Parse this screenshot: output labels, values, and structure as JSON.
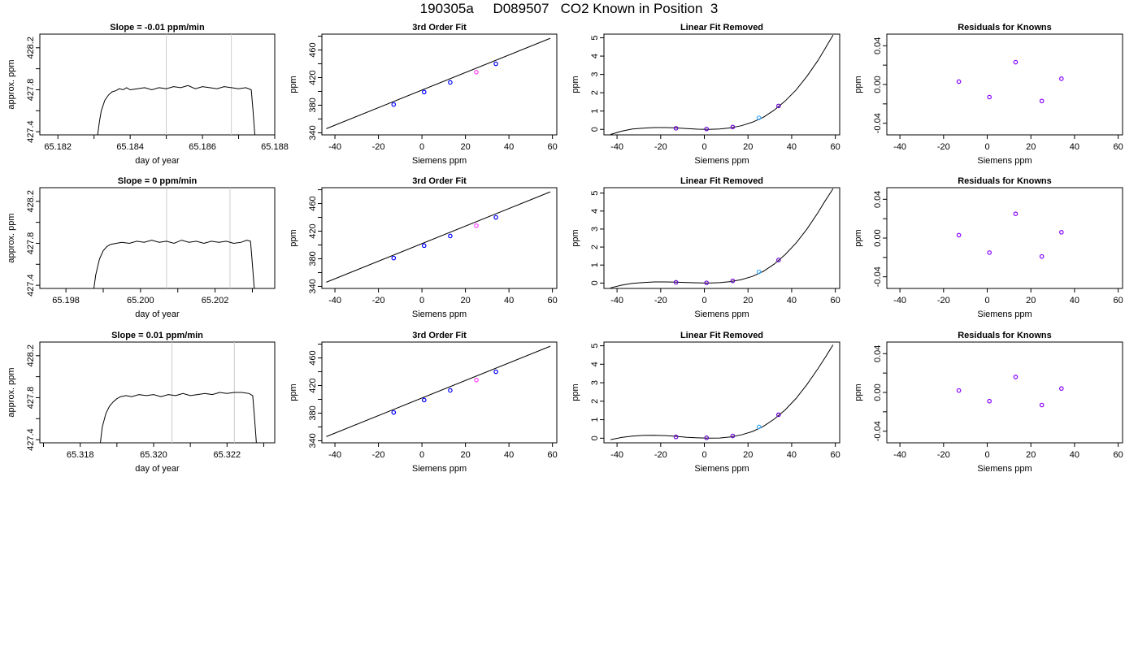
{
  "page": {
    "title": "190305a     D089507   CO2 Known in Position  3"
  },
  "chart_data": [
    {
      "type": "line",
      "title": "Slope =  -0.01  ppm/min",
      "xlabel": "day of year",
      "ylabel": "approx. ppm",
      "xlim": [
        65.1815,
        65.188
      ],
      "ylim": [
        427.37,
        428.33
      ],
      "xticks": [
        "65.182",
        "65.184",
        "65.186",
        "65.188"
      ],
      "xtick_values": [
        65.182,
        65.184,
        65.186,
        65.188
      ],
      "yticks": [
        "427.4",
        "427.8",
        "428.2"
      ],
      "ytick_values": [
        427.4,
        427.8,
        428.2
      ],
      "ytick_minor": [
        427.6,
        428.0
      ],
      "xtick_minor": [
        65.183,
        65.185,
        65.187
      ],
      "vlines": [
        65.185,
        65.1868
      ],
      "series": [
        {
          "x": [
            65.1831,
            65.18315,
            65.1832,
            65.1833,
            65.1834,
            65.1835,
            65.1836,
            65.1837,
            65.1838,
            65.1839,
            65.184,
            65.1842,
            65.1844,
            65.1846,
            65.1848,
            65.185,
            65.1852,
            65.1854,
            65.1856,
            65.1858,
            65.186,
            65.1862,
            65.1864,
            65.1866,
            65.1868,
            65.187,
            65.1872,
            65.18735,
            65.1874,
            65.18745
          ],
          "y": [
            427.37,
            427.5,
            427.6,
            427.7,
            427.75,
            427.78,
            427.79,
            427.81,
            427.8,
            427.82,
            427.8,
            427.81,
            427.82,
            427.8,
            427.82,
            427.81,
            427.83,
            427.82,
            427.84,
            427.81,
            427.83,
            427.82,
            427.81,
            427.83,
            427.82,
            427.81,
            427.82,
            427.8,
            427.6,
            427.37
          ]
        }
      ]
    },
    {
      "type": "scatter",
      "title": "3rd Order Fit",
      "xlabel": "Siemens ppm",
      "ylabel": "ppm",
      "xlim": [
        -46,
        62
      ],
      "ylim": [
        337,
        483
      ],
      "xticks": [
        "-40",
        "-20",
        "0",
        "20",
        "40",
        "60"
      ],
      "xtick_values": [
        -40,
        -20,
        0,
        20,
        40,
        60
      ],
      "yticks": [
        "340",
        "380",
        "420",
        "460"
      ],
      "ytick_values": [
        340,
        380,
        420,
        460
      ],
      "ytick_minor": [
        360,
        400,
        440,
        480
      ],
      "fit_line": {
        "x": [
          -44,
          59
        ],
        "y": [
          346,
          477
        ]
      },
      "points": [
        {
          "x": -13,
          "y": 381,
          "color": "#0000ff"
        },
        {
          "x": 1,
          "y": 399,
          "color": "#0000ff"
        },
        {
          "x": 13,
          "y": 413,
          "color": "#0000ff"
        },
        {
          "x": 25,
          "y": 428,
          "color": "#ff44ff"
        },
        {
          "x": 34,
          "y": 440,
          "color": "#0000ff"
        }
      ]
    },
    {
      "type": "scatter",
      "title": "Linear Fit Removed",
      "xlabel": "Siemens ppm",
      "ylabel": "ppm",
      "xlim": [
        -46,
        62
      ],
      "ylim": [
        -0.3,
        5.2
      ],
      "xticks": [
        "-40",
        "-20",
        "0",
        "20",
        "40",
        "60"
      ],
      "xtick_values": [
        -40,
        -20,
        0,
        20,
        40,
        60
      ],
      "yticks": [
        "0",
        "1",
        "2",
        "3",
        "4",
        "5"
      ],
      "ytick_values": [
        0,
        1,
        2,
        3,
        4,
        5
      ],
      "curve": {
        "x": [
          -43,
          -38,
          -33,
          -28,
          -23,
          -18,
          -13,
          -8,
          -3,
          2,
          7,
          12,
          17,
          22,
          27,
          32,
          37,
          42,
          47,
          52,
          55,
          59
        ],
        "y": [
          -0.28,
          -0.1,
          0.02,
          0.07,
          0.1,
          0.1,
          0.08,
          0.04,
          0.01,
          0.0,
          0.02,
          0.08,
          0.2,
          0.39,
          0.66,
          1.05,
          1.55,
          2.15,
          2.9,
          3.75,
          4.35,
          5.15
        ]
      },
      "points": [
        {
          "x": -13,
          "y": 0.06,
          "color": "#6600cc"
        },
        {
          "x": 1,
          "y": 0.02,
          "color": "#6600cc"
        },
        {
          "x": 13,
          "y": 0.13,
          "color": "#6600cc"
        },
        {
          "x": 25,
          "y": 0.63,
          "color": "#33aaff"
        },
        {
          "x": 34,
          "y": 1.28,
          "color": "#6600cc"
        }
      ]
    },
    {
      "type": "scatter",
      "title": "Residuals for Knowns",
      "xlabel": "Siemens ppm",
      "ylabel": "ppm",
      "xlim": [
        -46,
        62
      ],
      "ylim": [
        -0.052,
        0.052
      ],
      "xticks": [
        "-40",
        "-20",
        "0",
        "20",
        "40",
        "60"
      ],
      "xtick_values": [
        -40,
        -20,
        0,
        20,
        40,
        60
      ],
      "yticks": [
        "-0.04",
        "0.00",
        "0.04"
      ],
      "ytick_values": [
        -0.04,
        0.0,
        0.04
      ],
      "ytick_minor": [
        -0.02,
        0.02
      ],
      "points": [
        {
          "x": -13,
          "y": 0.003,
          "color": "#8800ff"
        },
        {
          "x": 1,
          "y": -0.013,
          "color": "#8800ff"
        },
        {
          "x": 13,
          "y": 0.023,
          "color": "#8800ff"
        },
        {
          "x": 25,
          "y": -0.017,
          "color": "#8800ff"
        },
        {
          "x": 34,
          "y": 0.006,
          "color": "#8800ff"
        }
      ]
    },
    {
      "type": "line",
      "title": "Slope =  0  ppm/min",
      "xlabel": "day of year",
      "ylabel": "approx. ppm",
      "xlim": [
        65.1973,
        65.2036
      ],
      "ylim": [
        427.37,
        428.33
      ],
      "xticks": [
        "65.198",
        "65.200",
        "65.202"
      ],
      "xtick_values": [
        65.198,
        65.2,
        65.202
      ],
      "yticks": [
        "427.4",
        "427.8",
        "428.2"
      ],
      "ytick_values": [
        427.4,
        427.8,
        428.2
      ],
      "ytick_minor": [
        427.6,
        428.0
      ],
      "xtick_minor": [
        65.199,
        65.201,
        65.203
      ],
      "vlines": [
        65.2007,
        65.2024
      ],
      "series": [
        {
          "x": [
            65.19875,
            65.1988,
            65.1989,
            65.199,
            65.1991,
            65.1992,
            65.19935,
            65.1995,
            65.1997,
            65.1999,
            65.2001,
            65.2003,
            65.2005,
            65.2007,
            65.2009,
            65.2011,
            65.2013,
            65.2015,
            65.2017,
            65.2019,
            65.2021,
            65.2023,
            65.2025,
            65.2027,
            65.20285,
            65.20295,
            65.203,
            65.20305
          ],
          "y": [
            427.37,
            427.5,
            427.65,
            427.73,
            427.77,
            427.79,
            427.8,
            427.81,
            427.8,
            427.82,
            427.81,
            427.83,
            427.81,
            427.82,
            427.8,
            427.83,
            427.81,
            427.82,
            427.8,
            427.82,
            427.81,
            427.82,
            427.8,
            427.81,
            427.83,
            427.82,
            427.6,
            427.37
          ]
        }
      ]
    },
    {
      "type": "scatter",
      "title": "3rd Order Fit",
      "xlabel": "Siemens ppm",
      "ylabel": "ppm",
      "xlim": [
        -46,
        62
      ],
      "ylim": [
        337,
        483
      ],
      "xticks": [
        "-40",
        "-20",
        "0",
        "20",
        "40",
        "60"
      ],
      "xtick_values": [
        -40,
        -20,
        0,
        20,
        40,
        60
      ],
      "yticks": [
        "340",
        "380",
        "420",
        "460"
      ],
      "ytick_values": [
        340,
        380,
        420,
        460
      ],
      "ytick_minor": [
        360,
        400,
        440,
        480
      ],
      "fit_line": {
        "x": [
          -44,
          59
        ],
        "y": [
          346,
          477
        ]
      },
      "points": [
        {
          "x": -13,
          "y": 381,
          "color": "#0000ff"
        },
        {
          "x": 1,
          "y": 399,
          "color": "#0000ff"
        },
        {
          "x": 13,
          "y": 413,
          "color": "#0000ff"
        },
        {
          "x": 25,
          "y": 428,
          "color": "#ff44ff"
        },
        {
          "x": 34,
          "y": 440,
          "color": "#0000ff"
        }
      ]
    },
    {
      "type": "scatter",
      "title": "Linear Fit Removed",
      "xlabel": "Siemens ppm",
      "ylabel": "ppm",
      "xlim": [
        -46,
        62
      ],
      "ylim": [
        -0.3,
        5.3
      ],
      "xticks": [
        "-40",
        "-20",
        "0",
        "20",
        "40",
        "60"
      ],
      "xtick_values": [
        -40,
        -20,
        0,
        20,
        40,
        60
      ],
      "yticks": [
        "0",
        "1",
        "2",
        "3",
        "4",
        "5"
      ],
      "ytick_values": [
        0,
        1,
        2,
        3,
        4,
        5
      ],
      "curve": {
        "x": [
          -43,
          -38,
          -33,
          -28,
          -23,
          -18,
          -13,
          -8,
          -3,
          2,
          7,
          12,
          17,
          22,
          27,
          32,
          37,
          42,
          47,
          52,
          55,
          59
        ],
        "y": [
          -0.27,
          -0.12,
          -0.02,
          0.03,
          0.06,
          0.06,
          0.05,
          0.03,
          0.01,
          0.0,
          0.02,
          0.08,
          0.19,
          0.37,
          0.65,
          1.05,
          1.58,
          2.22,
          3.0,
          3.9,
          4.5,
          5.25
        ]
      },
      "points": [
        {
          "x": -13,
          "y": 0.04,
          "color": "#6600cc"
        },
        {
          "x": 1,
          "y": 0.01,
          "color": "#6600cc"
        },
        {
          "x": 13,
          "y": 0.12,
          "color": "#6600cc"
        },
        {
          "x": 25,
          "y": 0.62,
          "color": "#33aaff"
        },
        {
          "x": 34,
          "y": 1.28,
          "color": "#6600cc"
        }
      ]
    },
    {
      "type": "scatter",
      "title": "Residuals for Knowns",
      "xlabel": "Siemens ppm",
      "ylabel": "ppm",
      "xlim": [
        -46,
        62
      ],
      "ylim": [
        -0.052,
        0.052
      ],
      "xticks": [
        "-40",
        "-20",
        "0",
        "20",
        "40",
        "60"
      ],
      "xtick_values": [
        -40,
        -20,
        0,
        20,
        40,
        60
      ],
      "yticks": [
        "-0.04",
        "0.00",
        "0.04"
      ],
      "ytick_values": [
        -0.04,
        0.0,
        0.04
      ],
      "ytick_minor": [
        -0.02,
        0.02
      ],
      "points": [
        {
          "x": -13,
          "y": 0.003,
          "color": "#8800ff"
        },
        {
          "x": 1,
          "y": -0.015,
          "color": "#8800ff"
        },
        {
          "x": 13,
          "y": 0.025,
          "color": "#8800ff"
        },
        {
          "x": 25,
          "y": -0.019,
          "color": "#8800ff"
        },
        {
          "x": 34,
          "y": 0.006,
          "color": "#8800ff"
        }
      ]
    },
    {
      "type": "line",
      "title": "Slope =  0.01  ppm/min",
      "xlabel": "day of year",
      "ylabel": "approx. ppm",
      "xlim": [
        65.3169,
        65.3233
      ],
      "ylim": [
        427.37,
        428.33
      ],
      "xticks": [
        "65.318",
        "65.320",
        "65.322"
      ],
      "xtick_values": [
        65.318,
        65.32,
        65.322
      ],
      "yticks": [
        "427.4",
        "427.8",
        "428.2"
      ],
      "ytick_values": [
        427.4,
        427.8,
        428.2
      ],
      "ytick_minor": [
        427.6,
        428.0
      ],
      "xtick_minor": [
        65.317,
        65.319,
        65.321,
        65.323
      ],
      "vlines": [
        65.3205,
        65.3222
      ],
      "series": [
        {
          "x": [
            65.31855,
            65.3186,
            65.3187,
            65.3188,
            65.3189,
            65.319,
            65.3191,
            65.31925,
            65.3194,
            65.3196,
            65.3198,
            65.32,
            65.3202,
            65.3204,
            65.3206,
            65.3208,
            65.321,
            65.3212,
            65.3214,
            65.3216,
            65.3218,
            65.322,
            65.3222,
            65.3224,
            65.3226,
            65.3227,
            65.32275,
            65.3228
          ],
          "y": [
            427.37,
            427.52,
            427.65,
            427.72,
            427.76,
            427.79,
            427.81,
            427.82,
            427.81,
            427.83,
            427.82,
            427.83,
            427.81,
            427.83,
            427.82,
            427.84,
            427.82,
            427.83,
            427.84,
            427.83,
            427.85,
            427.84,
            427.85,
            427.85,
            427.84,
            427.82,
            427.6,
            427.37
          ]
        }
      ]
    },
    {
      "type": "scatter",
      "title": "3rd Order Fit",
      "xlabel": "Siemens ppm",
      "ylabel": "ppm",
      "xlim": [
        -46,
        62
      ],
      "ylim": [
        337,
        483
      ],
      "xticks": [
        "-40",
        "-20",
        "0",
        "20",
        "40",
        "60"
      ],
      "xtick_values": [
        -40,
        -20,
        0,
        20,
        40,
        60
      ],
      "yticks": [
        "340",
        "380",
        "420",
        "460"
      ],
      "ytick_values": [
        340,
        380,
        420,
        460
      ],
      "ytick_minor": [
        360,
        400,
        440,
        480
      ],
      "fit_line": {
        "x": [
          -44,
          59
        ],
        "y": [
          346,
          477
        ]
      },
      "points": [
        {
          "x": -13,
          "y": 381,
          "color": "#0000ff"
        },
        {
          "x": 1,
          "y": 399,
          "color": "#0000ff"
        },
        {
          "x": 13,
          "y": 413,
          "color": "#0000ff"
        },
        {
          "x": 25,
          "y": 428,
          "color": "#ff44ff"
        },
        {
          "x": 34,
          "y": 440,
          "color": "#0000ff"
        }
      ]
    },
    {
      "type": "scatter",
      "title": "Linear Fit Removed",
      "xlabel": "Siemens ppm",
      "ylabel": "ppm",
      "xlim": [
        -46,
        62
      ],
      "ylim": [
        -0.25,
        5.2
      ],
      "xticks": [
        "-40",
        "-20",
        "0",
        "20",
        "40",
        "60"
      ],
      "xtick_values": [
        -40,
        -20,
        0,
        20,
        40,
        60
      ],
      "yticks": [
        "0",
        "1",
        "2",
        "3",
        "4",
        "5"
      ],
      "ytick_values": [
        0,
        1,
        2,
        3,
        4,
        5
      ],
      "curve": {
        "x": [
          -43,
          -38,
          -33,
          -28,
          -23,
          -18,
          -13,
          -8,
          -3,
          2,
          7,
          12,
          17,
          22,
          27,
          32,
          37,
          42,
          47,
          52,
          55,
          59
        ],
        "y": [
          -0.08,
          0.04,
          0.11,
          0.15,
          0.16,
          0.14,
          0.1,
          0.05,
          0.02,
          0.0,
          0.01,
          0.07,
          0.18,
          0.36,
          0.64,
          1.03,
          1.53,
          2.15,
          2.9,
          3.75,
          4.3,
          5.05
        ]
      },
      "points": [
        {
          "x": -13,
          "y": 0.07,
          "color": "#6600cc"
        },
        {
          "x": 1,
          "y": 0.02,
          "color": "#6600cc"
        },
        {
          "x": 13,
          "y": 0.12,
          "color": "#6600cc"
        },
        {
          "x": 25,
          "y": 0.61,
          "color": "#33aaff"
        },
        {
          "x": 34,
          "y": 1.27,
          "color": "#6600cc"
        }
      ]
    },
    {
      "type": "scatter",
      "title": "Residuals for Knowns",
      "xlabel": "Siemens ppm",
      "ylabel": "ppm",
      "xlim": [
        -46,
        62
      ],
      "ylim": [
        -0.052,
        0.052
      ],
      "xticks": [
        "-40",
        "-20",
        "0",
        "20",
        "40",
        "60"
      ],
      "xtick_values": [
        -40,
        -20,
        0,
        20,
        40,
        60
      ],
      "yticks": [
        "-0.04",
        "0.00",
        "0.04"
      ],
      "ytick_values": [
        -0.04,
        0.0,
        0.04
      ],
      "ytick_minor": [
        -0.02,
        0.02
      ],
      "points": [
        {
          "x": -13,
          "y": 0.002,
          "color": "#8800ff"
        },
        {
          "x": 1,
          "y": -0.009,
          "color": "#8800ff"
        },
        {
          "x": 13,
          "y": 0.016,
          "color": "#8800ff"
        },
        {
          "x": 25,
          "y": -0.013,
          "color": "#8800ff"
        },
        {
          "x": 34,
          "y": 0.004,
          "color": "#8800ff"
        }
      ]
    }
  ]
}
